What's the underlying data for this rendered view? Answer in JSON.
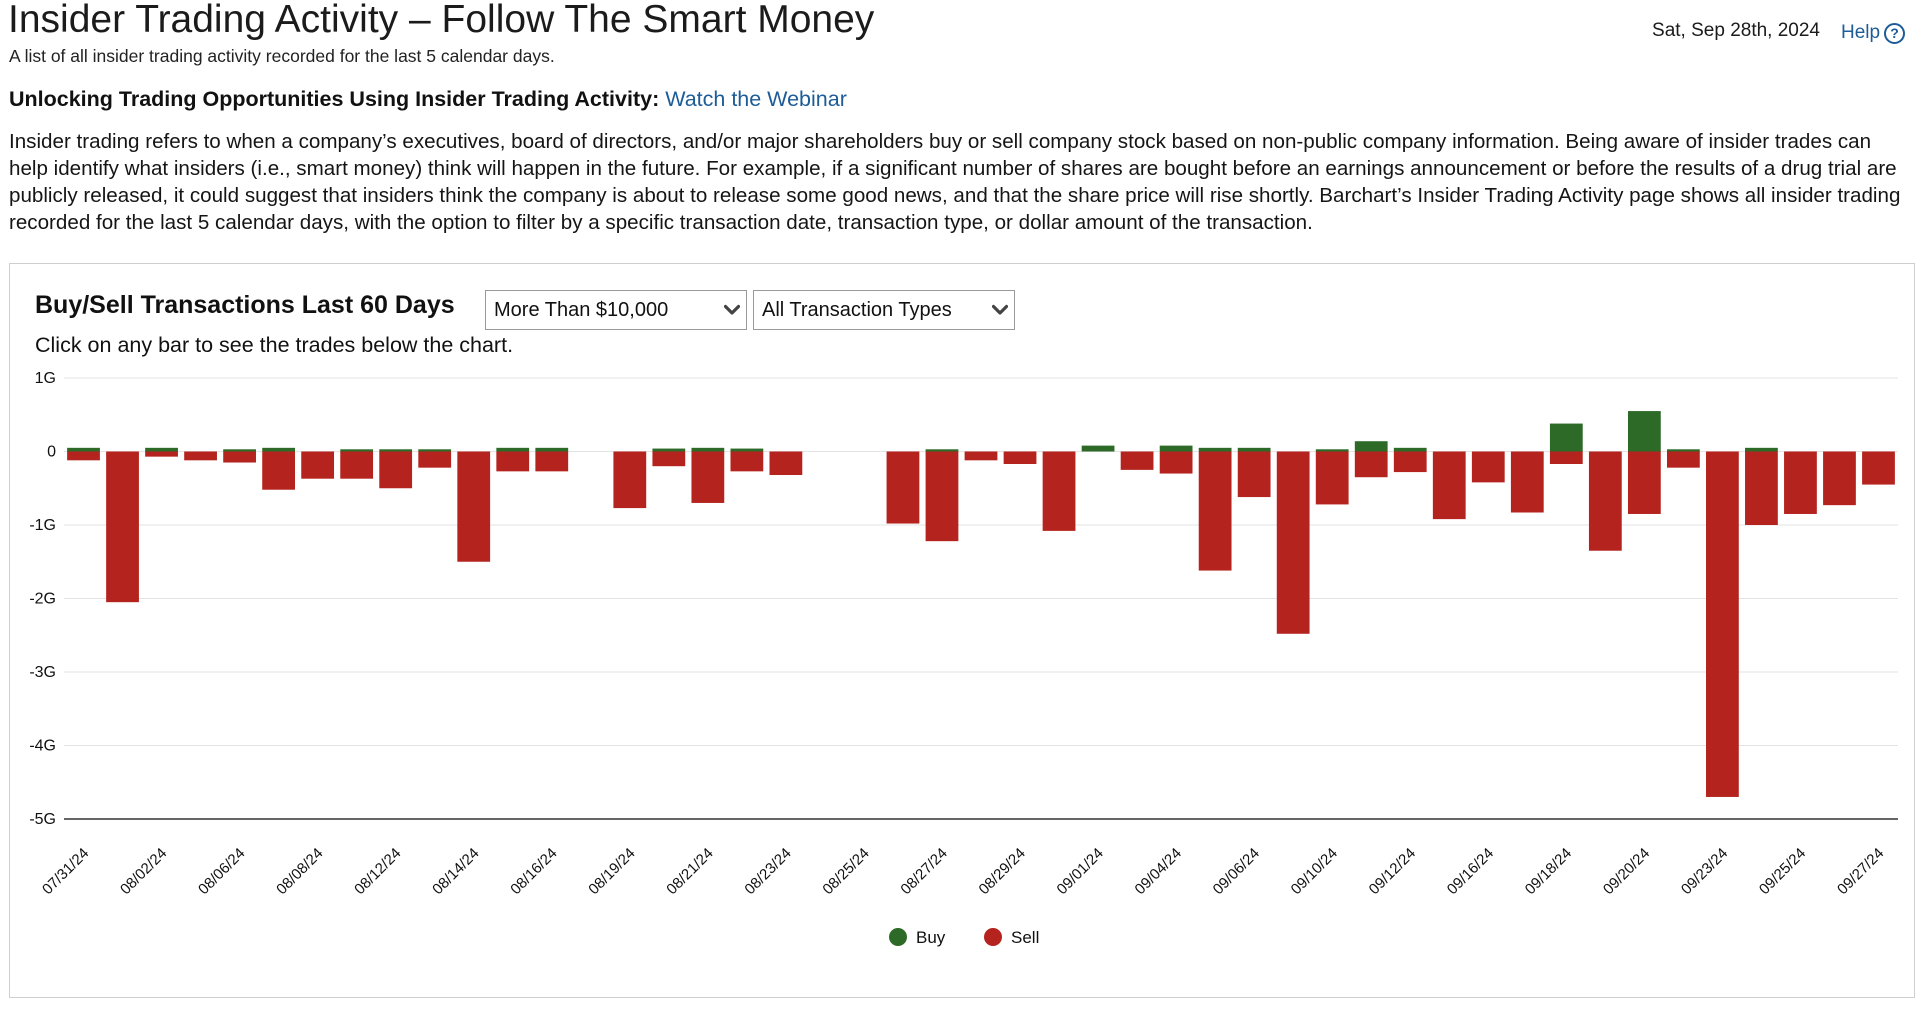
{
  "header": {
    "title": "Insider Trading Activity – Follow The Smart Money",
    "subtitle": "A list of all insider trading activity recorded for the last 5 calendar days.",
    "date": "Sat, Sep 28th, 2024",
    "help_label": "Help",
    "help_icon": "question-circle-icon"
  },
  "webinar": {
    "lead": "Unlocking Trading Opportunities Using Insider Trading Activity:",
    "link_label": "Watch the Webinar"
  },
  "description": "Insider trading refers to when a company’s executives, board of directors, and/or major shareholders buy or sell company stock based on non-public company information. Being aware of insider trades can help identify what insiders (i.e., smart money) think will happen in the future. For example, if a significant number of shares are bought before an earnings announcement or before the results of a drug trial are publicly released, it could suggest that insiders think the company is about to release some good news, and that the share price will rise shortly. Barchart’s Insider Trading Activity page shows all insider trading recorded for the last 5 calendar days, with the option to filter by a specific transaction date, transaction type, or dollar amount of the transaction.",
  "chart_panel": {
    "title": "Buy/Sell Transactions Last 60 Days",
    "hint": "Click on any bar to see the trades below the chart.",
    "amount_filter": {
      "value": "More Than $10,000",
      "icon": "chevron-down-icon"
    },
    "type_filter": {
      "value": "All Transaction Types",
      "icon": "chevron-down-icon"
    }
  },
  "chart_data": {
    "type": "bar",
    "units": "G",
    "ylim": [
      -5,
      1
    ],
    "yticks": [
      1,
      0,
      -1,
      -2,
      -3,
      -4,
      -5
    ],
    "ytick_labels": [
      "1G",
      "0",
      "-1G",
      "-2G",
      "-3G",
      "-4G",
      "-5G"
    ],
    "grid": true,
    "legend_position": "bottom-center",
    "categories": [
      "07/31/24",
      "08/01/24",
      "08/02/24",
      "08/05/24",
      "08/06/24",
      "08/07/24",
      "08/08/24",
      "08/09/24",
      "08/12/24",
      "08/13/24",
      "08/14/24",
      "08/15/24",
      "08/16/24",
      "08/17/24",
      "08/19/24",
      "08/20/24",
      "08/21/24",
      "08/22/24",
      "08/23/24",
      "08/24/24",
      "08/25/24",
      "08/26/24",
      "08/27/24",
      "08/28/24",
      "08/29/24",
      "08/30/24",
      "09/01/24",
      "09/03/24",
      "09/04/24",
      "09/05/24",
      "09/06/24",
      "09/09/24",
      "09/10/24",
      "09/11/24",
      "09/12/24",
      "09/13/24",
      "09/16/24",
      "09/17/24",
      "09/18/24",
      "09/19/24",
      "09/20/24",
      "09/22/24",
      "09/23/24",
      "09/24/24",
      "09/25/24",
      "09/26/24",
      "09/27/24"
    ],
    "tick_labels": [
      "07/31/24",
      "08/02/24",
      "08/06/24",
      "08/08/24",
      "08/12/24",
      "08/14/24",
      "08/16/24",
      "08/19/24",
      "08/21/24",
      "08/23/24",
      "08/25/24",
      "08/27/24",
      "08/29/24",
      "09/01/24",
      "09/04/24",
      "09/06/24",
      "09/10/24",
      "09/12/24",
      "09/16/24",
      "09/18/24",
      "09/20/24",
      "09/23/24",
      "09/25/24",
      "09/27/24"
    ],
    "series": [
      {
        "name": "Buy",
        "color": "#2d6a27",
        "values": [
          0.05,
          0,
          0.05,
          0,
          0.03,
          0.05,
          0,
          0.03,
          0.03,
          0.03,
          0,
          0.05,
          0.05,
          0,
          0,
          0.04,
          0.05,
          0.04,
          0,
          0,
          0,
          0,
          0.03,
          0,
          0,
          0,
          0.08,
          0,
          0.08,
          0.05,
          0.05,
          0,
          0.03,
          0.14,
          0.05,
          0,
          0,
          0,
          0.38,
          0,
          0.55,
          0.03,
          0,
          0.05,
          0,
          0,
          0
        ]
      },
      {
        "name": "Sell",
        "color": "#b5231e",
        "values": [
          -0.12,
          -2.05,
          -0.07,
          -0.12,
          -0.15,
          -0.52,
          -0.37,
          -0.37,
          -0.5,
          -0.22,
          -1.5,
          -0.27,
          -0.27,
          0,
          -0.77,
          -0.2,
          -0.7,
          -0.27,
          -0.32,
          0,
          0,
          -0.98,
          -1.22,
          -0.12,
          -0.17,
          -1.08,
          0,
          -0.25,
          -0.3,
          -1.62,
          -0.62,
          -2.48,
          -0.72,
          -0.35,
          -0.28,
          -0.92,
          -0.42,
          -0.83,
          -0.17,
          -1.35,
          -0.85,
          -0.22,
          -4.7,
          -1.0,
          -0.85,
          -0.73,
          -0.45
        ]
      }
    ]
  }
}
